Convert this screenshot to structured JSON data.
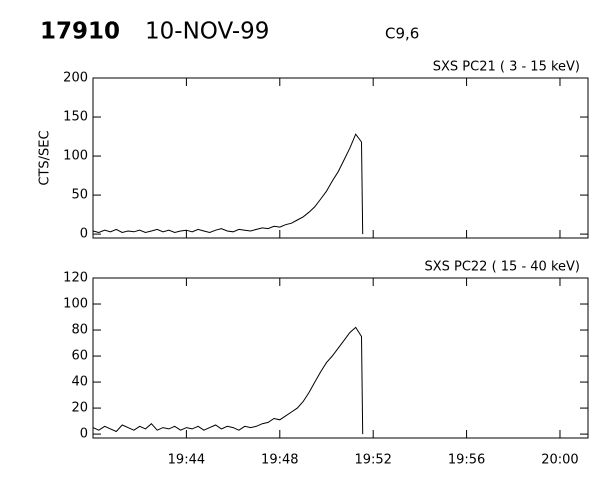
{
  "header": {
    "id": "17910",
    "date": "10-NOV-99",
    "class": "C9,6"
  },
  "chart_data": [
    {
      "type": "line",
      "title": "SXS PC21  (  3 - 15 keV)",
      "y_label": "CTS/SEC",
      "x": [
        40,
        40.25,
        40.5,
        40.75,
        41,
        41.25,
        41.5,
        41.75,
        42,
        42.25,
        42.5,
        42.75,
        43,
        43.25,
        43.5,
        43.75,
        44,
        44.25,
        44.5,
        44.75,
        45,
        45.25,
        45.5,
        45.75,
        46,
        46.25,
        46.5,
        46.75,
        47,
        47.25,
        47.5,
        47.75,
        48,
        48.25,
        48.5,
        48.75,
        49,
        49.25,
        49.5,
        49.75,
        50,
        50.25,
        50.5,
        50.75,
        51,
        51.25,
        51.5,
        51.55
      ],
      "series": [
        {
          "name": "SXS PC21",
          "color": "#000000",
          "values": [
            4,
            2,
            5,
            3,
            6,
            2,
            4,
            3,
            5,
            2,
            4,
            6,
            3,
            5,
            2,
            4,
            5,
            3,
            6,
            4,
            2,
            5,
            7,
            4,
            3,
            6,
            5,
            4,
            6,
            8,
            7,
            10,
            9,
            12,
            14,
            18,
            22,
            28,
            35,
            45,
            55,
            68,
            80,
            95,
            110,
            128,
            118,
            0
          ]
        }
      ],
      "xlim": [
        40,
        61.2
      ],
      "xticks": [
        44,
        48,
        52,
        56,
        60
      ],
      "ylim": [
        -5,
        200
      ],
      "yticks": [
        0,
        50,
        100,
        150,
        200
      ]
    },
    {
      "type": "line",
      "title": "SXS PC22  ( 15 - 40 keV)",
      "x": [
        40,
        40.25,
        40.5,
        40.75,
        41,
        41.25,
        41.5,
        41.75,
        42,
        42.25,
        42.5,
        42.75,
        43,
        43.25,
        43.5,
        43.75,
        44,
        44.25,
        44.5,
        44.75,
        45,
        45.25,
        45.5,
        45.75,
        46,
        46.25,
        46.5,
        46.75,
        47,
        47.25,
        47.5,
        47.75,
        48,
        48.25,
        48.5,
        48.75,
        49,
        49.25,
        49.5,
        49.75,
        50,
        50.25,
        50.5,
        50.75,
        51,
        51.25,
        51.5,
        51.55
      ],
      "series": [
        {
          "name": "SXS PC22",
          "color": "#000000",
          "values": [
            5,
            3,
            6,
            4,
            2,
            7,
            5,
            3,
            6,
            4,
            8,
            3,
            5,
            4,
            6,
            3,
            5,
            4,
            6,
            3,
            5,
            7,
            4,
            6,
            5,
            3,
            6,
            5,
            6,
            8,
            9,
            12,
            11,
            14,
            17,
            20,
            25,
            32,
            40,
            48,
            55,
            60,
            66,
            72,
            78,
            82,
            75,
            0
          ]
        }
      ],
      "xlim": [
        40,
        61.2
      ],
      "xticks": [
        {
          "value": 44,
          "label": "19:44"
        },
        {
          "value": 48,
          "label": "19:48"
        },
        {
          "value": 52,
          "label": "19:52"
        },
        {
          "value": 56,
          "label": "19:56"
        },
        {
          "value": 60,
          "label": "20:00"
        }
      ],
      "ylim": [
        -3,
        120
      ],
      "yticks": [
        0,
        20,
        40,
        60,
        80,
        100,
        120
      ]
    }
  ]
}
